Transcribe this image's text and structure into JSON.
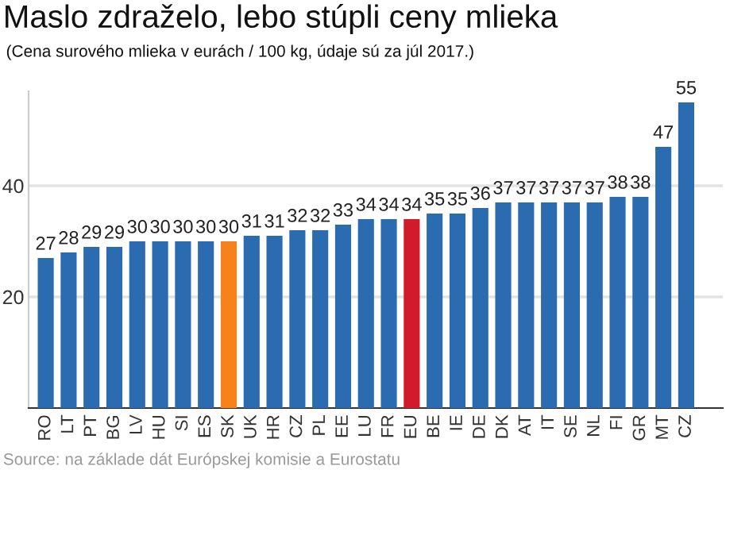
{
  "chart_data": {
    "type": "bar",
    "title": "Maslo zdraželo, lebo stúpli ceny mlieka",
    "subtitle": "(Cena surového mlieka v eurách / 100 kg, údaje sú za júl 2017.)",
    "categories": [
      "RO",
      "LT",
      "PT",
      "BG",
      "LV",
      "HU",
      "SI",
      "ES",
      "SK",
      "UK",
      "HR",
      "CZ",
      "PL",
      "EE",
      "LU",
      "FR",
      "EU",
      "BE",
      "IE",
      "DE",
      "DK",
      "AT",
      "IT",
      "SE",
      "NL",
      "FI",
      "GR",
      "MT",
      "CZ"
    ],
    "values": [
      27,
      28,
      29,
      29,
      30,
      30,
      30,
      30,
      30,
      31,
      31,
      32,
      32,
      33,
      34,
      34,
      34,
      35,
      35,
      36,
      37,
      37,
      37,
      37,
      37,
      38,
      38,
      47,
      55
    ],
    "colors": [
      "#2b6cb0",
      "#2b6cb0",
      "#2b6cb0",
      "#2b6cb0",
      "#2b6cb0",
      "#2b6cb0",
      "#2b6cb0",
      "#2b6cb0",
      "#f7821b",
      "#2b6cb0",
      "#2b6cb0",
      "#2b6cb0",
      "#2b6cb0",
      "#2b6cb0",
      "#2b6cb0",
      "#2b6cb0",
      "#d11a2a",
      "#2b6cb0",
      "#2b6cb0",
      "#2b6cb0",
      "#2b6cb0",
      "#2b6cb0",
      "#2b6cb0",
      "#2b6cb0",
      "#2b6cb0",
      "#2b6cb0",
      "#2b6cb0",
      "#2b6cb0",
      "#2b6cb0"
    ],
    "ylim": [
      0,
      57
    ],
    "yticks": [
      20,
      40
    ],
    "grid": "y",
    "data_labels": true,
    "legend": false,
    "annotations": [
      "Source: na základe dát Európskej komisie a Eurostatu"
    ]
  }
}
